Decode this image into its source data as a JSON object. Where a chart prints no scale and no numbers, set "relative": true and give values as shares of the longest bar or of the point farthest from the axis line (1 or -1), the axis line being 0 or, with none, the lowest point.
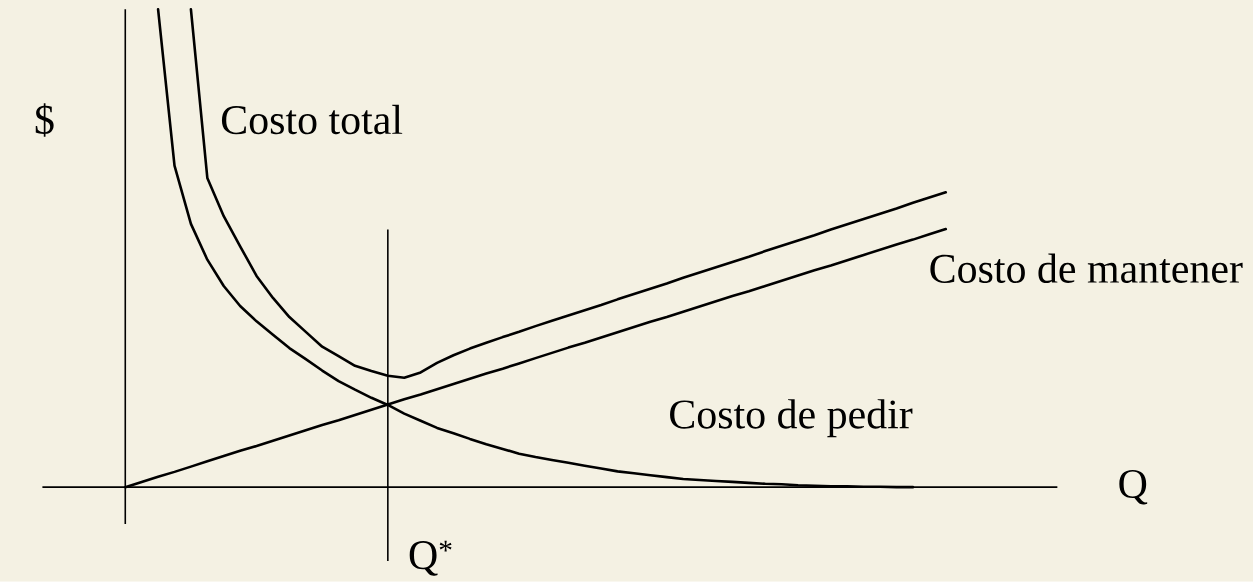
{
  "chart_data": {
    "type": "line",
    "relative": true,
    "xlabel": "Q",
    "ylabel": "$",
    "marker": "none",
    "line_style": "solid",
    "categories": [
      null,
      null,
      null,
      null,
      null,
      null,
      null,
      null,
      null,
      null,
      null,
      null,
      null,
      null,
      null,
      null,
      null,
      null,
      null,
      null,
      null,
      null,
      null,
      null,
      null,
      null,
      null,
      null,
      null,
      null,
      null,
      null,
      null,
      null,
      null,
      null,
      null,
      null,
      null,
      null,
      null,
      null,
      null,
      null,
      null,
      null,
      null,
      null,
      null,
      null,
      null
    ],
    "series": [
      {
        "name": "Costo total",
        "color": "#000000",
        "values": [
          null,
          null,
          null,
          null,
          1.0,
          0.647,
          0.567,
          0.504,
          0.442,
          0.396,
          0.356,
          0.325,
          0.294,
          0.274,
          0.254,
          0.243,
          0.233,
          0.229,
          0.24,
          0.26,
          0.276,
          0.29,
          0.302,
          0.314,
          0.325,
          0.337,
          0.348,
          0.359,
          0.37,
          0.381,
          0.393,
          0.404,
          0.415,
          0.426,
          0.438,
          0.449,
          0.46,
          0.471,
          0.482,
          0.494,
          0.505,
          0.516,
          0.527,
          0.539,
          0.55,
          0.561,
          0.572,
          0.583,
          0.595,
          0.606,
          0.617
        ]
      },
      {
        "name": "Costo de mantener",
        "color": "#000000",
        "values": [
          0,
          0.011,
          0.022,
          0.032,
          0.043,
          0.054,
          0.065,
          0.076,
          0.086,
          0.097,
          0.108,
          0.119,
          0.13,
          0.14,
          0.151,
          0.162,
          0.173,
          0.184,
          0.194,
          0.205,
          0.216,
          0.227,
          0.238,
          0.248,
          0.259,
          0.27,
          0.281,
          0.292,
          0.302,
          0.313,
          0.324,
          0.335,
          0.346,
          0.356,
          0.367,
          0.378,
          0.389,
          0.4,
          0.41,
          0.421,
          0.432,
          0.443,
          0.454,
          0.464,
          0.475,
          0.486,
          0.497,
          0.508,
          0.518,
          0.529,
          0.54
        ]
      },
      {
        "name": "Costo de pedir",
        "color": "#000000",
        "values": [
          null,
          null,
          1.0,
          0.673,
          0.551,
          0.476,
          0.421,
          0.379,
          0.347,
          0.319,
          0.291,
          0.268,
          0.244,
          0.222,
          0.204,
          0.187,
          0.172,
          0.154,
          0.139,
          0.124,
          0.113,
          0.101,
          0.09,
          0.08,
          0.07,
          0.063,
          0.057,
          0.051,
          0.045,
          0.039,
          0.033,
          0.029,
          0.025,
          0.021,
          0.017,
          0.015,
          0.013,
          0.011,
          0.009,
          0.007,
          0.006,
          0.004,
          0.003,
          0.002,
          0.002,
          0.001,
          0.001,
          0.0,
          0.0,
          null,
          null
        ]
      }
    ],
    "annotations": [
      "Q$^{*}$"
    ]
  }
}
